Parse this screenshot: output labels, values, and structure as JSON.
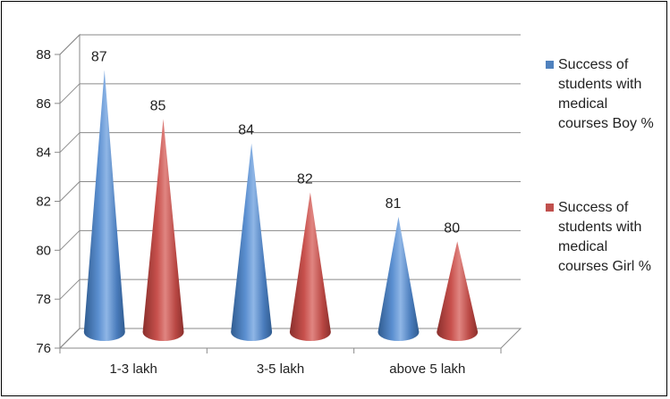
{
  "chart_data": {
    "type": "bar",
    "style": "3d-cone",
    "categories": [
      "1-3 lakh",
      "3-5 lakh",
      "above 5 lakh"
    ],
    "series": [
      {
        "name": "Success of students with medical courses  Boy %",
        "values": [
          87,
          84,
          81
        ],
        "color": "#4F81BD"
      },
      {
        "name": "Success of students with medical courses  Girl %",
        "values": [
          85,
          82,
          80
        ],
        "color": "#C0504D"
      }
    ],
    "ylim": [
      76,
      88
    ],
    "yticks": [
      76,
      78,
      80,
      82,
      84,
      86,
      88
    ],
    "grid": true,
    "legend_position": "right",
    "title": "",
    "xlabel": "",
    "ylabel": ""
  }
}
